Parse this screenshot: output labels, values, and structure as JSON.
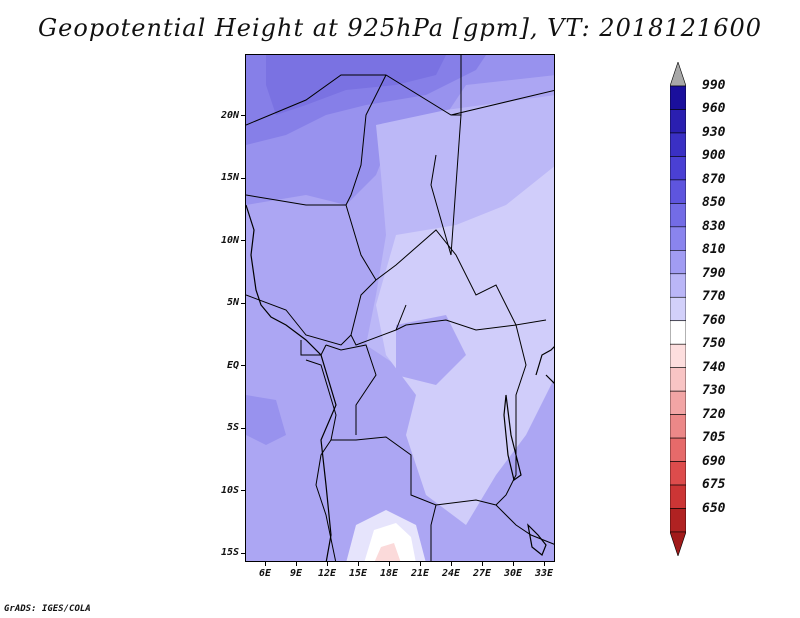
{
  "title": "Geopotential Height at 925hPa [gpm], VT: 2018121600",
  "map": {
    "lon_labels": [
      "6E",
      "9E",
      "12E",
      "15E",
      "18E",
      "21E",
      "24E",
      "27E",
      "30E",
      "33E"
    ],
    "lat_labels": [
      "20N",
      "15N",
      "10N",
      "5N",
      "EQ",
      "5S",
      "10S",
      "15S"
    ]
  },
  "colorbar": {
    "levels": [
      "990",
      "960",
      "930",
      "900",
      "870",
      "850",
      "830",
      "810",
      "790",
      "770",
      "760",
      "750",
      "740",
      "730",
      "720",
      "705",
      "690",
      "675",
      "650"
    ],
    "colors": [
      "#1a0f9c",
      "#2a1fb0",
      "#3a30c4",
      "#4a40d4",
      "#5e55de",
      "#736ce6",
      "#8a84ee",
      "#a19cf3",
      "#bab6f7",
      "#d2d0fa",
      "#ffffff",
      "#fddede",
      "#f8c4c4",
      "#f2a5a5",
      "#ec8888",
      "#e66a6a",
      "#dd4c4c",
      "#cc3535",
      "#b02222"
    ],
    "top_arrow_color": "#a8a8a8",
    "bottom_arrow_color": "#a11a1a"
  },
  "credit": "GrADS: IGES/COLA"
}
